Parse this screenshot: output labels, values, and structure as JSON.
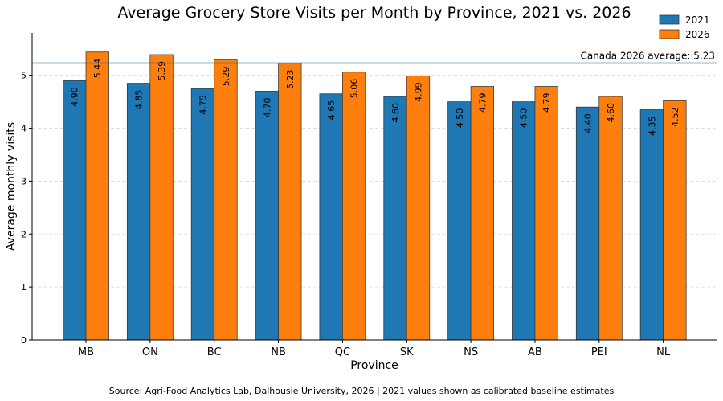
{
  "chart_data": {
    "type": "bar",
    "title": "Average Grocery Store Visits per Month by Province, 2021 vs. 2026",
    "xlabel": "Province",
    "ylabel": "Average monthly visits",
    "categories": [
      "MB",
      "ON",
      "BC",
      "NB",
      "QC",
      "SK",
      "NS",
      "AB",
      "PEI",
      "NL"
    ],
    "series": [
      {
        "name": "2021",
        "color": "#1f77b4",
        "values": [
          4.9,
          4.85,
          4.75,
          4.7,
          4.65,
          4.6,
          4.5,
          4.5,
          4.4,
          4.35
        ]
      },
      {
        "name": "2026",
        "color": "#ff7f0e",
        "values": [
          5.44,
          5.39,
          5.29,
          5.23,
          5.06,
          4.99,
          4.79,
          4.79,
          4.6,
          4.52
        ]
      }
    ],
    "ylim": [
      0,
      5.8
    ],
    "yticks": [
      0,
      1,
      2,
      3,
      4,
      5
    ],
    "grid": "horizontal dashed",
    "legend": "top-right",
    "reference_line": {
      "value": 5.23,
      "label": "Canada 2026 average: 5.23",
      "color": "#2b6a9a"
    },
    "source": "Source: Agri-Food Analytics Lab, Dalhousie University, 2026 | 2021 values shown as calibrated baseline estimates"
  }
}
